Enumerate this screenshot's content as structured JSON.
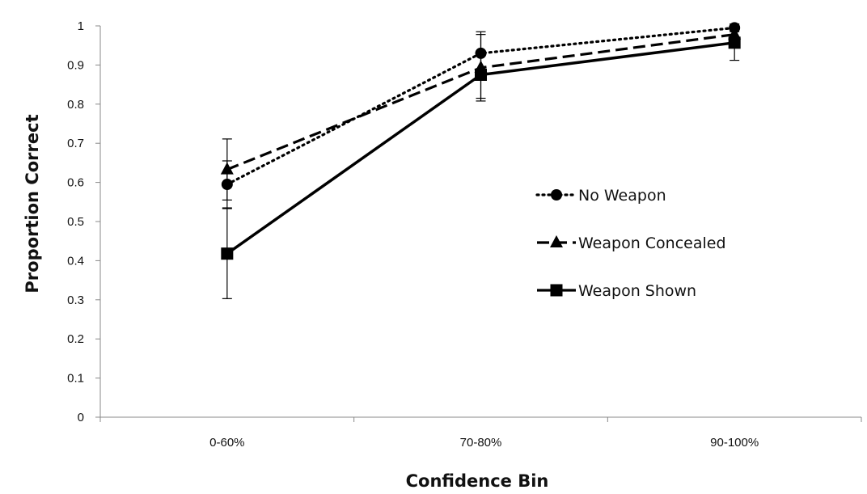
{
  "chart_data": {
    "type": "line",
    "title": "",
    "xlabel": "Confidence Bin",
    "ylabel": "Proportion Correct",
    "categories": [
      "0-60%",
      "70-80%",
      "90-100%"
    ],
    "ylim": [
      0,
      1
    ],
    "yticks": [
      "0",
      "0.1",
      "0.2",
      "0.3",
      "0.4",
      "0.5",
      "0.6",
      "0.7",
      "0.8",
      "0.9",
      "1"
    ],
    "grid": false,
    "legend_position": "right-center",
    "series": [
      {
        "name": "No Weapon",
        "marker": "circle",
        "dash": "dotted",
        "values": [
          0.595,
          0.93,
          0.995
        ],
        "errors": [
          0.06,
          0.055,
          0.01
        ]
      },
      {
        "name": "Weapon Concealed",
        "marker": "triangle",
        "dash": "dashed",
        "values": [
          0.633,
          0.893,
          0.978
        ],
        "errors": [
          0.078,
          0.085,
          0.015
        ]
      },
      {
        "name": "Weapon Shown",
        "marker": "square",
        "dash": "solid",
        "values": [
          0.418,
          0.875,
          0.957
        ],
        "errors": [
          0.115,
          0.06,
          0.045
        ]
      }
    ]
  },
  "colors": {
    "line": "#000000",
    "axis": "#888888",
    "text": "#111111"
  }
}
